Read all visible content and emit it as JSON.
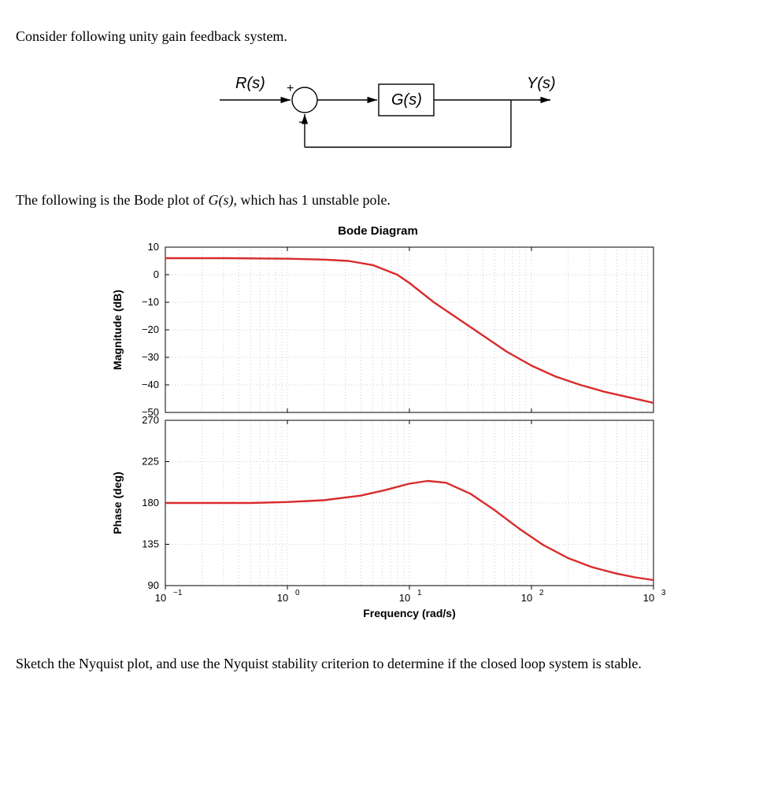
{
  "text": {
    "intro": "Consider following unity gain feedback system.",
    "bode_intro_prefix": "The following is the Bode plot of ",
    "bode_intro_gs": "G(s)",
    "bode_intro_suffix": ", which has 1 unstable pole.",
    "conclusion": "Sketch the Nyquist plot, and use the Nyquist stability criterion to determine if the closed loop system is stable."
  },
  "block_diagram": {
    "labels": {
      "input": "R(s)",
      "block": "G(s)",
      "output": "Y(s)",
      "plus": "+",
      "minus": "−"
    },
    "color": "#000000",
    "linewidth": 1.2
  },
  "bode": {
    "title": "Bode Diagram",
    "xlabel": "Frequency  (rad/s)",
    "mag_ylabel": "Magnitude (dB)",
    "phase_ylabel": "Phase (deg)",
    "line_color": "#d92b2b",
    "line_width": 2.4,
    "axis_color": "#000000",
    "grid_color": "#cccccc",
    "font_size_tick": 13,
    "font_size_label": 14,
    "x_decades": [
      -1,
      0,
      1,
      2,
      3
    ],
    "x_tick_labels": [
      "10",
      "10",
      "10",
      "10",
      "10"
    ],
    "x_tick_exponents": [
      "−1",
      "0",
      "1",
      "2",
      "3"
    ],
    "mag": {
      "ylim": [
        -50,
        10
      ],
      "yticks": [
        10,
        0,
        -10,
        -20,
        -30,
        -40,
        -50
      ],
      "data": [
        [
          -1.0,
          6
        ],
        [
          -0.5,
          6
        ],
        [
          0.0,
          5.8
        ],
        [
          0.3,
          5.5
        ],
        [
          0.5,
          5
        ],
        [
          0.7,
          3.5
        ],
        [
          0.9,
          0
        ],
        [
          1.0,
          -3
        ],
        [
          1.2,
          -10
        ],
        [
          1.4,
          -16
        ],
        [
          1.6,
          -22
        ],
        [
          1.8,
          -28
        ],
        [
          2.0,
          -33
        ],
        [
          2.2,
          -37
        ],
        [
          2.4,
          -40
        ],
        [
          2.6,
          -42.5
        ],
        [
          2.8,
          -44.5
        ],
        [
          3.0,
          -46.5
        ]
      ]
    },
    "phase": {
      "ylim": [
        90,
        270
      ],
      "yticks": [
        270,
        225,
        180,
        135,
        90
      ],
      "data": [
        [
          -1.0,
          180
        ],
        [
          -0.3,
          180
        ],
        [
          0.0,
          181
        ],
        [
          0.3,
          183
        ],
        [
          0.6,
          188
        ],
        [
          0.8,
          194
        ],
        [
          1.0,
          201
        ],
        [
          1.15,
          204
        ],
        [
          1.3,
          202
        ],
        [
          1.5,
          190
        ],
        [
          1.7,
          172
        ],
        [
          1.9,
          152
        ],
        [
          2.1,
          134
        ],
        [
          2.3,
          120
        ],
        [
          2.5,
          110
        ],
        [
          2.7,
          103
        ],
        [
          2.85,
          99
        ],
        [
          3.0,
          96
        ]
      ]
    }
  }
}
